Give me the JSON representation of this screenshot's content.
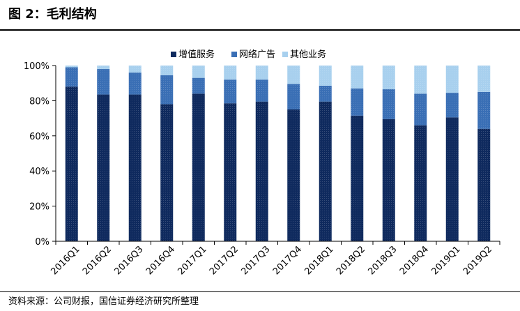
{
  "header": {
    "title": "图 2：毛利结构"
  },
  "footer": {
    "source": "资料来源：公司财报，国信证券经济研究所整理"
  },
  "chart_data": {
    "type": "bar",
    "stacked": true,
    "categories": [
      "2016Q1",
      "2016Q2",
      "2016Q3",
      "2016Q4",
      "2017Q1",
      "2017Q2",
      "2017Q3",
      "2017Q4",
      "2018Q1",
      "2018Q2",
      "2018Q3",
      "2018Q4",
      "2019Q1",
      "2019Q2"
    ],
    "series": [
      {
        "name": "增值服务",
        "color": "#0f2a5e",
        "values": [
          88,
          83.5,
          83.5,
          78,
          84,
          78.5,
          79.5,
          75,
          79.5,
          71.5,
          69.5,
          66,
          70.5,
          64
        ]
      },
      {
        "name": "网络广告",
        "color": "#3a6fb5",
        "values": [
          11,
          14.5,
          12.5,
          16.5,
          9,
          13.5,
          12.5,
          14.5,
          9,
          15.5,
          17,
          18,
          14,
          21
        ]
      },
      {
        "name": "其他业务",
        "color": "#a8d0ee",
        "values": [
          1,
          2,
          4,
          5.5,
          7,
          8,
          8,
          10.5,
          11.5,
          13,
          13.5,
          16,
          15.5,
          15
        ]
      }
    ],
    "yticks": [
      "0%",
      "20%",
      "40%",
      "60%",
      "80%",
      "100%"
    ],
    "ylim": [
      0,
      100
    ],
    "legend_position": "top",
    "grid": false
  }
}
